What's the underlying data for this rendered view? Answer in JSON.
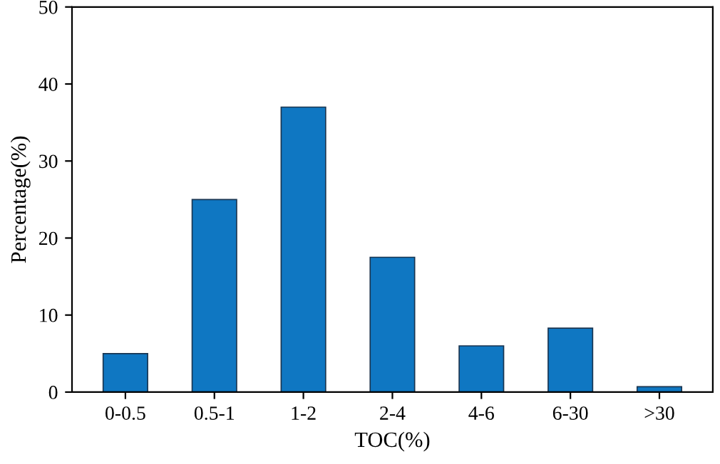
{
  "chart_data": {
    "type": "bar",
    "xlabel": "TOC(%)",
    "ylabel": "Percentage(%)",
    "categories": [
      "0-0.5",
      "0.5-1",
      "1-2",
      "2-4",
      "4-6",
      "6-30",
      ">30"
    ],
    "values": [
      5,
      25,
      37,
      17.5,
      6,
      8.3,
      0.7
    ],
    "color": "#0f77c2",
    "ylim": [
      0,
      50
    ],
    "yticks": [
      0,
      10,
      20,
      30,
      40,
      50
    ],
    "grid": false,
    "legend": false
  }
}
